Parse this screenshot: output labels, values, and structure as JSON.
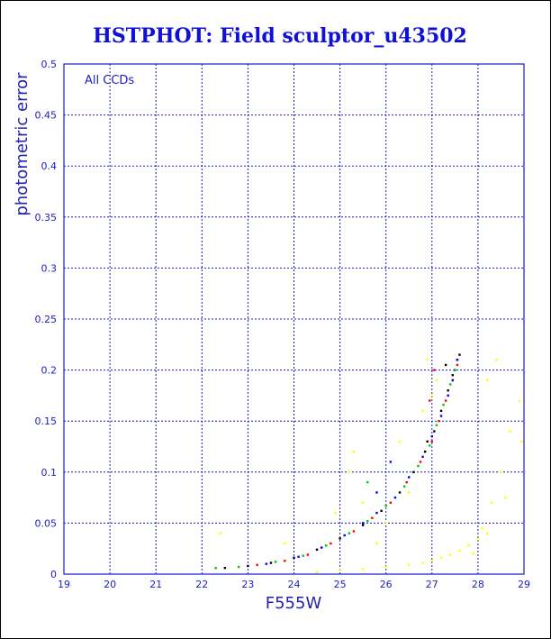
{
  "chart_data": {
    "type": "scatter",
    "title": "HSTPHOT: Field sculptor_u43502",
    "xlabel": "F555W",
    "ylabel": "photometric error",
    "annotation": "All CCDs",
    "xlim": [
      19,
      29
    ],
    "ylim": [
      0,
      0.5
    ],
    "xticks": [
      "19",
      "20",
      "21",
      "22",
      "23",
      "24",
      "25",
      "26",
      "27",
      "28",
      "29"
    ],
    "yticks": [
      "0",
      "0.05",
      "0.1",
      "0.15",
      "0.2",
      "0.25",
      "0.3",
      "0.35",
      "0.4",
      "0.45",
      "0.5"
    ],
    "grid": true,
    "colors": {
      "black": "#000000",
      "red": "#ff0000",
      "green": "#00c800",
      "blue": "#0000ff",
      "yellow": "#ffff00",
      "axis": "#1818d0",
      "title": "#1010d8"
    },
    "series": [
      {
        "color": "black",
        "points": [
          [
            22.5,
            0.006
          ],
          [
            23.0,
            0.008
          ],
          [
            23.5,
            0.011
          ],
          [
            24.0,
            0.016
          ],
          [
            24.5,
            0.024
          ],
          [
            25.0,
            0.035
          ],
          [
            25.5,
            0.048
          ],
          [
            25.9,
            0.062
          ],
          [
            26.3,
            0.08
          ],
          [
            26.6,
            0.1
          ],
          [
            26.85,
            0.12
          ],
          [
            27.05,
            0.14
          ],
          [
            27.2,
            0.16
          ],
          [
            27.35,
            0.18
          ],
          [
            27.45,
            0.195
          ],
          [
            27.55,
            0.21
          ],
          [
            27.6,
            0.215
          ],
          [
            27.3,
            0.205
          ],
          [
            27.5,
            0.2
          ],
          [
            26.9,
            0.13
          ]
        ]
      },
      {
        "color": "red",
        "points": [
          [
            23.2,
            0.009
          ],
          [
            23.8,
            0.013
          ],
          [
            24.3,
            0.019
          ],
          [
            24.8,
            0.03
          ],
          [
            25.3,
            0.042
          ],
          [
            25.7,
            0.055
          ],
          [
            26.1,
            0.07
          ],
          [
            26.45,
            0.09
          ],
          [
            26.75,
            0.11
          ],
          [
            27.0,
            0.13
          ],
          [
            27.15,
            0.15
          ],
          [
            27.3,
            0.17
          ],
          [
            27.45,
            0.19
          ],
          [
            27.55,
            0.205
          ],
          [
            27.05,
            0.2
          ],
          [
            26.95,
            0.17
          ]
        ]
      },
      {
        "color": "green",
        "points": [
          [
            22.3,
            0.006
          ],
          [
            22.8,
            0.007
          ],
          [
            23.6,
            0.012
          ],
          [
            24.2,
            0.018
          ],
          [
            24.7,
            0.028
          ],
          [
            25.2,
            0.04
          ],
          [
            25.6,
            0.052
          ],
          [
            26.0,
            0.067
          ],
          [
            26.4,
            0.086
          ],
          [
            26.7,
            0.106
          ],
          [
            26.95,
            0.126
          ],
          [
            27.1,
            0.146
          ],
          [
            27.25,
            0.166
          ],
          [
            27.4,
            0.186
          ],
          [
            27.5,
            0.2
          ],
          [
            25.6,
            0.09
          ]
        ]
      },
      {
        "color": "blue",
        "points": [
          [
            23.4,
            0.01
          ],
          [
            24.1,
            0.017
          ],
          [
            24.6,
            0.026
          ],
          [
            25.1,
            0.038
          ],
          [
            25.5,
            0.05
          ],
          [
            25.8,
            0.06
          ],
          [
            26.2,
            0.075
          ],
          [
            26.5,
            0.095
          ],
          [
            26.8,
            0.115
          ],
          [
            27.0,
            0.135
          ],
          [
            27.2,
            0.155
          ],
          [
            27.35,
            0.175
          ],
          [
            27.45,
            0.19
          ],
          [
            27.55,
            0.21
          ],
          [
            26.1,
            0.11
          ],
          [
            25.8,
            0.08
          ]
        ]
      },
      {
        "color": "yellow",
        "points": [
          [
            24.5,
            0.002
          ],
          [
            25.0,
            0.004
          ],
          [
            25.5,
            0.005
          ],
          [
            26.0,
            0.007
          ],
          [
            26.5,
            0.009
          ],
          [
            26.8,
            0.011
          ],
          [
            27.0,
            0.013
          ],
          [
            27.2,
            0.016
          ],
          [
            27.4,
            0.019
          ],
          [
            27.6,
            0.023
          ],
          [
            27.8,
            0.028
          ],
          [
            28.0,
            0.034
          ],
          [
            28.1,
            0.045
          ],
          [
            28.3,
            0.07
          ],
          [
            28.5,
            0.1
          ],
          [
            28.7,
            0.14
          ],
          [
            28.9,
            0.17
          ],
          [
            28.95,
            0.13
          ],
          [
            27.9,
            0.02
          ],
          [
            28.2,
            0.04
          ],
          [
            28.6,
            0.075
          ],
          [
            28.4,
            0.21
          ],
          [
            28.2,
            0.19
          ],
          [
            25.2,
            0.1
          ],
          [
            25.5,
            0.07
          ],
          [
            26.0,
            0.05
          ],
          [
            26.5,
            0.08
          ],
          [
            27.1,
            0.19
          ],
          [
            26.8,
            0.16
          ],
          [
            26.3,
            0.13
          ],
          [
            25.3,
            0.12
          ],
          [
            24.9,
            0.06
          ],
          [
            25.8,
            0.03
          ],
          [
            22.4,
            0.04
          ],
          [
            23.8,
            0.03
          ],
          [
            26.9,
            0.21
          ],
          [
            27.0,
            0.175
          ]
        ]
      }
    ]
  }
}
